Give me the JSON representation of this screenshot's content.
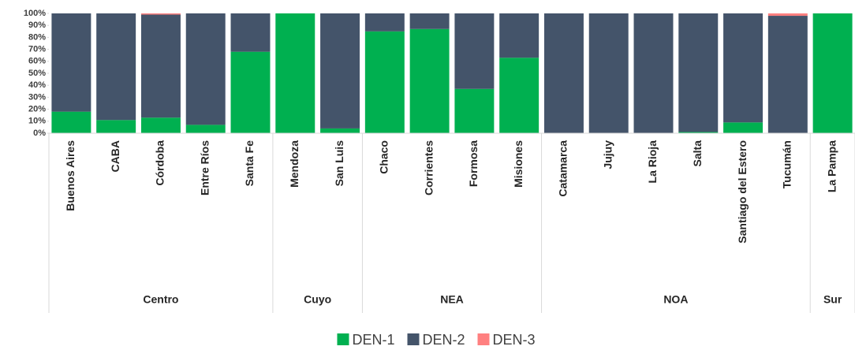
{
  "chart_data": {
    "type": "stacked_bar_100",
    "categories": [
      "Buenos Aires",
      "CABA",
      "Córdoba",
      "Entre Ríos",
      "Santa Fe",
      "Mendoza",
      "San Luis",
      "Chaco",
      "Corrientes",
      "Formosa",
      "Misiones",
      "Catamarca",
      "Jujuy",
      "La Rioja",
      "Salta",
      "Santiago del Estero",
      "Tucumán",
      "La Pampa"
    ],
    "groups": [
      {
        "name": "Centro",
        "span": 5
      },
      {
        "name": "Cuyo",
        "span": 2
      },
      {
        "name": "NEA",
        "span": 4
      },
      {
        "name": "NOA",
        "span": 6
      },
      {
        "name": "Sur",
        "span": 1
      }
    ],
    "series": [
      {
        "name": "DEN-1",
        "color": "#00b050",
        "values": [
          18,
          11,
          13,
          7,
          68,
          100,
          4,
          85,
          87,
          37,
          63,
          0,
          0,
          0,
          1,
          9,
          0,
          100
        ]
      },
      {
        "name": "DEN-2",
        "color": "#44546a",
        "values": [
          82,
          89,
          86,
          93,
          32,
          0,
          96,
          15,
          13,
          63,
          37,
          100,
          100,
          100,
          99,
          91,
          98,
          0
        ]
      },
      {
        "name": "DEN-3",
        "color": "#ff8080",
        "values": [
          0,
          0,
          1,
          0,
          0,
          0,
          0,
          0,
          0,
          0,
          0,
          0,
          0,
          0,
          0,
          0,
          2,
          0
        ]
      }
    ],
    "ylim": [
      0,
      100
    ],
    "yticks": [
      {
        "value": 0,
        "label": "0%"
      },
      {
        "value": 10,
        "label": "10%"
      },
      {
        "value": 20,
        "label": "20%"
      },
      {
        "value": 30,
        "label": "30%"
      },
      {
        "value": 40,
        "label": "40%"
      },
      {
        "value": 50,
        "label": "50%"
      },
      {
        "value": 60,
        "label": "60%"
      },
      {
        "value": 70,
        "label": "70%"
      },
      {
        "value": 80,
        "label": "80%"
      },
      {
        "value": 90,
        "label": "90%"
      },
      {
        "value": 100,
        "label": "100%"
      }
    ],
    "legend": "bottom"
  }
}
